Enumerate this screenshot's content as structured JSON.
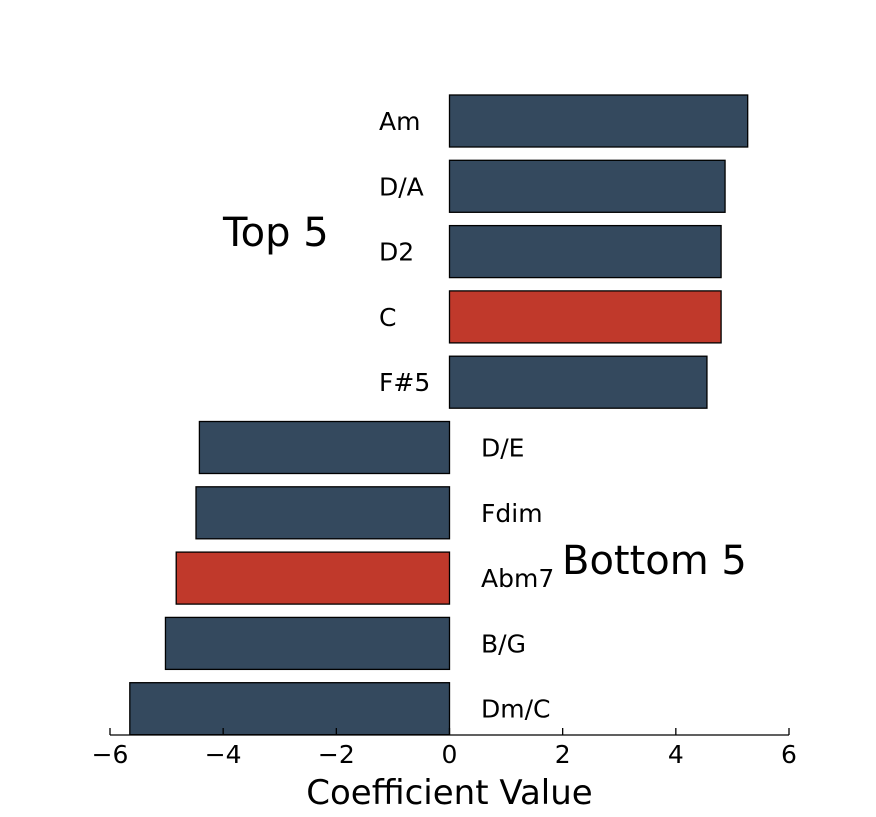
{
  "chart_data": {
    "type": "bar",
    "orientation": "horizontal",
    "xlabel": "Coefficient Value",
    "xlim": [
      -6,
      6
    ],
    "xticks": [
      -6,
      -4,
      -2,
      0,
      2,
      4,
      6
    ],
    "xtick_labels": [
      "−6",
      "−4",
      "−2",
      "0",
      "2",
      "4",
      "6"
    ],
    "grid": false,
    "categories": [
      "Am",
      "D/A",
      "D2",
      "C",
      "F#5",
      "D/E",
      "Fdim",
      "Abm7",
      "B/G",
      "Dm/C"
    ],
    "values": [
      5.27,
      4.87,
      4.8,
      4.8,
      4.55,
      -4.42,
      -4.48,
      -4.83,
      -5.02,
      -5.65
    ],
    "highlighted": [
      "C",
      "Abm7"
    ],
    "group_labels": [
      "Top 5",
      "Bottom 5"
    ],
    "colors": {
      "bar": "#34495e",
      "highlight": "#c0392b"
    }
  }
}
